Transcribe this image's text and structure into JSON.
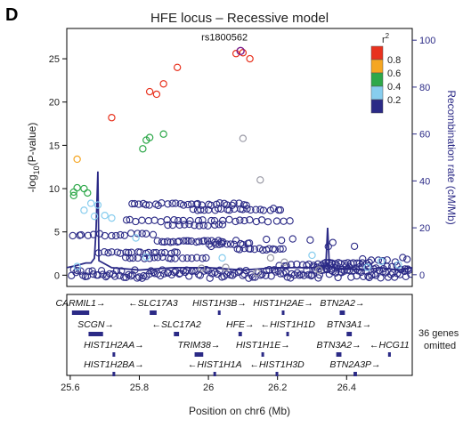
{
  "panel_letter": "D",
  "chart_data": {
    "type": "scatter",
    "title": "HFE locus – Recessive model",
    "xlabel": "Position on chr6 (Mb)",
    "ylabel_left_prefix": "-log",
    "ylabel_left_sub": "10",
    "ylabel_left_suffix": "(P-value)",
    "ylabel_right": "Recombination rate (cM/Mb)",
    "xlim": [
      25.59,
      26.59
    ],
    "ylim_left": [
      -1.3,
      28.5
    ],
    "ylim_right": [
      -5,
      105
    ],
    "x_ticks": [
      25.6,
      25.8,
      26.0,
      26.2,
      26.4
    ],
    "x_tick_labels": [
      "25.6",
      "25.8",
      "26",
      "26.2",
      "26.4"
    ],
    "y_left_ticks": [
      0,
      5,
      10,
      15,
      20,
      25
    ],
    "y_right_ticks": [
      0,
      20,
      40,
      60,
      80,
      100
    ],
    "grid": false,
    "lead_snp": {
      "label": "rs1800562",
      "x": 26.093,
      "y": 25.9,
      "color": "#7a1e8c"
    },
    "legend": {
      "title": "r",
      "title_sup": "2",
      "placement": "top-right",
      "entries": [
        {
          "label": "0.8",
          "color": "#e8321e"
        },
        {
          "label": "0.6",
          "color": "#f5a623"
        },
        {
          "label": "0.4",
          "color": "#2ea84a"
        },
        {
          "label": "0.2",
          "color": "#87cdee"
        },
        {
          "label": "",
          "color": "#2b2a86"
        }
      ]
    },
    "series": [
      {
        "r2": "0.8",
        "color": "#e8321e",
        "points": [
          [
            26.08,
            25.6
          ],
          [
            26.1,
            25.7
          ],
          [
            26.12,
            25.0
          ],
          [
            25.91,
            24.0
          ],
          [
            25.87,
            22.1
          ],
          [
            25.85,
            20.9
          ],
          [
            25.83,
            21.2
          ],
          [
            25.72,
            18.2
          ]
        ]
      },
      {
        "r2": "0.6",
        "color": "#f5a623",
        "points": [
          [
            25.62,
            13.4
          ]
        ]
      },
      {
        "r2": "0.4",
        "color": "#2ea84a",
        "points": [
          [
            25.82,
            15.6
          ],
          [
            25.83,
            15.9
          ],
          [
            25.87,
            16.3
          ],
          [
            25.81,
            14.6
          ],
          [
            25.61,
            9.6
          ],
          [
            25.62,
            10.1
          ],
          [
            25.64,
            10.0
          ],
          [
            25.65,
            9.5
          ],
          [
            25.61,
            9.2
          ]
        ]
      },
      {
        "r2": "0.2",
        "color": "#87cdee",
        "points": [
          [
            25.66,
            8.3
          ],
          [
            25.68,
            8.1
          ],
          [
            25.64,
            7.5
          ],
          [
            25.67,
            6.8
          ],
          [
            25.7,
            6.9
          ],
          [
            25.72,
            6.6
          ],
          [
            25.79,
            4.3
          ],
          [
            25.82,
            2.1
          ],
          [
            26.5,
            1.6
          ],
          [
            26.55,
            1.2
          ],
          [
            25.62,
            1.0
          ],
          [
            26.3,
            2.3
          ],
          [
            26.04,
            2.0
          ],
          [
            26.46,
            0.9
          ]
        ]
      },
      {
        "r2": "grey",
        "color": "#9a9aa6",
        "points": [
          [
            26.1,
            15.8
          ],
          [
            26.15,
            11.0
          ],
          [
            26.05,
            0.9
          ],
          [
            26.18,
            2.0
          ],
          [
            26.22,
            1.5
          ],
          [
            26.32,
            0.6
          ],
          [
            25.98,
            0.8
          ],
          [
            26.14,
            0.3
          ]
        ]
      }
    ],
    "low_ld_bands": [
      {
        "x1": 25.6,
        "x2": 26.59,
        "y": 0.15,
        "n": 150,
        "spread": 1.0
      },
      {
        "x1": 25.77,
        "x2": 26.12,
        "y": 8.2,
        "n": 30,
        "spread": 0.3
      },
      {
        "x1": 25.95,
        "x2": 26.22,
        "y": 7.6,
        "n": 22,
        "spread": 0.25
      },
      {
        "x1": 25.75,
        "x2": 26.24,
        "y": 6.3,
        "n": 28,
        "spread": 0.25
      },
      {
        "x1": 25.88,
        "x2": 26.05,
        "y": 5.8,
        "n": 12,
        "spread": 0.2
      },
      {
        "x1": 25.6,
        "x2": 25.85,
        "y": 4.7,
        "n": 16,
        "spread": 0.3
      },
      {
        "x1": 25.85,
        "x2": 26.05,
        "y": 3.9,
        "n": 22,
        "spread": 0.2
      },
      {
        "x1": 26.0,
        "x2": 26.12,
        "y": 3.6,
        "n": 10,
        "spread": 0.2
      },
      {
        "x1": 26.08,
        "x2": 26.22,
        "y": 3.0,
        "n": 14,
        "spread": 0.2
      },
      {
        "x1": 25.68,
        "x2": 25.92,
        "y": 2.6,
        "n": 20,
        "spread": 0.2
      },
      {
        "x1": 25.75,
        "x2": 26.0,
        "y": 2.0,
        "n": 18,
        "spread": 0.2
      },
      {
        "x1": 26.0,
        "x2": 26.45,
        "y": 3.8,
        "n": 10,
        "spread": 1.0
      },
      {
        "x1": 26.33,
        "x2": 26.47,
        "y": 1.4,
        "n": 16,
        "spread": 0.2
      },
      {
        "x1": 26.3,
        "x2": 26.59,
        "y": 0.9,
        "n": 22,
        "spread": 0.5
      },
      {
        "x1": 26.2,
        "x2": 26.38,
        "y": 1.2,
        "n": 14,
        "spread": 0.3
      },
      {
        "x1": 26.44,
        "x2": 26.59,
        "y": 1.8,
        "n": 8,
        "spread": 0.6
      }
    ],
    "recombination": [
      [
        25.59,
        3
      ],
      [
        25.62,
        4
      ],
      [
        25.645,
        5
      ],
      [
        25.66,
        5
      ],
      [
        25.67,
        7
      ],
      [
        25.675,
        20
      ],
      [
        25.68,
        44
      ],
      [
        25.683,
        6
      ],
      [
        25.72,
        3
      ],
      [
        25.8,
        2
      ],
      [
        25.9,
        3
      ],
      [
        26.0,
        3
      ],
      [
        26.1,
        2
      ],
      [
        26.2,
        3
      ],
      [
        26.3,
        3
      ],
      [
        26.34,
        4
      ],
      [
        26.345,
        20
      ],
      [
        26.35,
        4
      ],
      [
        26.36,
        3
      ],
      [
        26.45,
        2
      ],
      [
        26.5,
        3
      ],
      [
        26.55,
        2
      ],
      [
        26.59,
        3
      ]
    ],
    "genes": {
      "omitted_note": [
        "36 genes",
        "omitted"
      ],
      "tracks": [
        {
          "name": "CARMIL1",
          "start": 25.605,
          "end": 25.655,
          "dir": "right",
          "ticks": true
        },
        {
          "name": "SLC17A3",
          "start": 25.83,
          "end": 25.85,
          "dir": "left",
          "ticks": true
        },
        {
          "name": "HIST1H3B",
          "start": 26.03,
          "end": 26.034,
          "dir": "right",
          "ticks": false
        },
        {
          "name": "HIST1H2AE",
          "start": 26.215,
          "end": 26.218,
          "dir": "right",
          "ticks": false
        },
        {
          "name": "BTN2A2",
          "start": 26.38,
          "end": 26.395,
          "dir": "right",
          "ticks": true
        },
        {
          "name": "SCGN",
          "start": 25.653,
          "end": 25.695,
          "dir": "right",
          "ticks": true
        },
        {
          "name": "SLC17A2",
          "start": 25.9,
          "end": 25.915,
          "dir": "left",
          "ticks": true
        },
        {
          "name": "HFE",
          "start": 26.087,
          "end": 26.097,
          "dir": "right",
          "ticks": true
        },
        {
          "name": "HIST1H1D",
          "start": 26.228,
          "end": 26.232,
          "dir": "left",
          "ticks": false
        },
        {
          "name": "BTN3A1",
          "start": 26.4,
          "end": 26.415,
          "dir": "right",
          "ticks": true
        },
        {
          "name": "HIST1H2AA",
          "start": 25.725,
          "end": 25.728,
          "dir": "right",
          "ticks": false
        },
        {
          "name": "TRIM38",
          "start": 25.96,
          "end": 25.985,
          "dir": "right",
          "ticks": true
        },
        {
          "name": "HIST1H1E",
          "start": 26.156,
          "end": 26.16,
          "dir": "right",
          "ticks": false
        },
        {
          "name": "BTN3A2",
          "start": 26.37,
          "end": 26.385,
          "dir": "right",
          "ticks": true
        },
        {
          "name": "HCG11",
          "start": 26.52,
          "end": 26.528,
          "dir": "left",
          "ticks": true
        },
        {
          "name": "HIST1H2BA",
          "start": 25.725,
          "end": 25.728,
          "dir": "right",
          "ticks": false
        },
        {
          "name": "HIST1H1A",
          "start": 26.017,
          "end": 26.02,
          "dir": "left",
          "ticks": false
        },
        {
          "name": "HIST1H3D",
          "start": 26.197,
          "end": 26.2,
          "dir": "left",
          "ticks": false
        },
        {
          "name": "BTN2A3P",
          "start": 26.42,
          "end": 26.43,
          "dir": "right",
          "ticks": true
        }
      ]
    }
  }
}
